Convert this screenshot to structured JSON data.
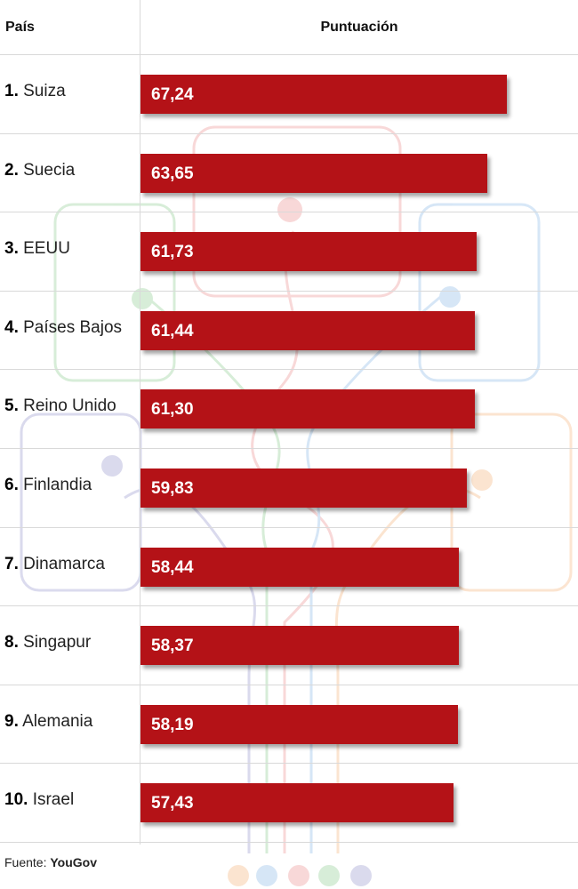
{
  "header": {
    "country_label": "País",
    "score_label": "Puntuación"
  },
  "chart_data": {
    "type": "bar",
    "orientation": "horizontal",
    "categories": [
      "Suiza",
      "Suecia",
      "EEUU",
      "Países Bajos",
      "Reino Unido",
      "Finlandia",
      "Dinamarca",
      "Singapur",
      "Alemania",
      "Israel"
    ],
    "ranks": [
      "1.",
      "2.",
      "3.",
      "4.",
      "5.",
      "6.",
      "7.",
      "8.",
      "9.",
      "10."
    ],
    "values": [
      67.24,
      63.65,
      61.73,
      61.44,
      61.3,
      59.83,
      58.44,
      58.37,
      58.19,
      57.43
    ],
    "value_labels": [
      "67,24",
      "63,65",
      "61,73",
      "61,44",
      "61,30",
      "59,83",
      "58,44",
      "58,37",
      "58,19",
      "57,43"
    ],
    "bar_color": "#b41217",
    "legend": "none",
    "grid": false
  },
  "footer": {
    "label": "Fuente:",
    "source": "YouGov"
  }
}
